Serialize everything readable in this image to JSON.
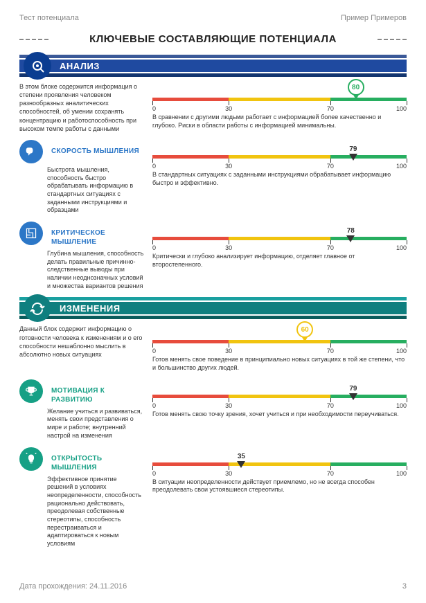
{
  "header": {
    "left": "Тест потенциала",
    "right": "Пример Примеров"
  },
  "title": "КЛЮЧЕВЫЕ СОСТАВЛЯЮЩИЕ ПОТЕНЦИАЛА",
  "scale": {
    "min": 0,
    "max": 100,
    "ticks": [
      0,
      30,
      70,
      100
    ],
    "segments": [
      {
        "from": 0,
        "to": 30,
        "color": "#e74c3c"
      },
      {
        "from": 30,
        "to": 70,
        "color": "#f1c40f"
      },
      {
        "from": 70,
        "to": 100,
        "color": "#27ae60"
      }
    ]
  },
  "sections": [
    {
      "id": "analysis",
      "title": "АНАЛИЗ",
      "icon": "analysis-icon",
      "banner_colors": {
        "top": "#3b5998",
        "mid": "#1f4aa0",
        "bot": "#13356f",
        "icon_bg": "#0b3d91"
      },
      "intro": "В этом блоке содержится информация о степени проявления человеком разнообразных аналитических способностей, об умении сохранять концентрацию и работоспособность при высоком темпе работы с данными",
      "main_score": {
        "value": 80,
        "style": "pin",
        "color": "#27ae60"
      },
      "main_interp": "В сравнении с другими людьми работает с информацией более качественно и глубоко. Риски в области работы с информацией минимальны.",
      "subs": [
        {
          "id": "speed",
          "icon": "brain-icon",
          "icon_bg": "#2c77c7",
          "title_color": "#2c77c7",
          "title": "СКОРОСТЬ МЫШЛЕНИЯ",
          "desc": "Быстрота мышления, способность быстро обрабатывать информацию в стандартных ситуациях с заданными инструкциями и образцами",
          "score": {
            "value": 79,
            "style": "arrow"
          },
          "interp": "В стандартных ситуациях с заданными инструкциями обрабатывает информацию быстро и эффективно."
        },
        {
          "id": "critical",
          "icon": "maze-icon",
          "icon_bg": "#2c77c7",
          "title_color": "#2c77c7",
          "title": "КРИТИЧЕСКОЕ МЫШЛЕНИЕ",
          "desc": "Глубина мышления, способность делать правильные причинно-следственные выводы при наличии неоднозначных условий и множества вариантов решения",
          "score": {
            "value": 78,
            "style": "arrow"
          },
          "interp": "Критически и глубоко анализирует информацию, отделяет главное от второстепенного."
        }
      ]
    },
    {
      "id": "change",
      "title": "ИЗМЕНЕНИЯ",
      "icon": "change-icon",
      "banner_colors": {
        "top": "#1aa0a0",
        "mid": "#0f7f7f",
        "bot": "#0a5c5c",
        "icon_bg": "#0f7f7f"
      },
      "intro": "Данный блок содержит информацию о готовности человека к изменениям и о его способности нешаблонно мыслить в абсолютно новых ситуациях",
      "main_score": {
        "value": 60,
        "style": "pin",
        "color": "#f1c40f"
      },
      "main_interp": "Готов менять свое поведение в принципиально новых ситуациях в той же степени, что и большинство других людей.",
      "subs": [
        {
          "id": "motivation",
          "icon": "trophy-icon",
          "icon_bg": "#16a085",
          "title_color": "#16a085",
          "title": "МОТИВАЦИЯ К РАЗВИТИЮ",
          "desc": "Желание учиться и развиваться, менять свои представления о мире и работе; внутренний настрой на изменения",
          "score": {
            "value": 79,
            "style": "arrow"
          },
          "interp": "Готов менять свою точку зрения, хочет учиться и при необходимости переучиваться."
        },
        {
          "id": "openness",
          "icon": "lightbulb-icon",
          "icon_bg": "#16a085",
          "title_color": "#16a085",
          "title": "ОТКРЫТОСТЬ МЫШЛЕНИЯ",
          "desc": "Эффективное принятие решений в условиях неопределенности, способность рационально действовать, преодолевая собственные стереотипы, способность перестраиваться и адаптироваться к новым условиям",
          "score": {
            "value": 35,
            "style": "arrow"
          },
          "interp": "В ситуации неопределенности действует приемлемо, но не всегда способен преодолевать свои устоявшиеся стереотипы."
        }
      ]
    }
  ],
  "footer": {
    "date_label": "Дата прохождения: 24.11.2016",
    "page": "3"
  }
}
